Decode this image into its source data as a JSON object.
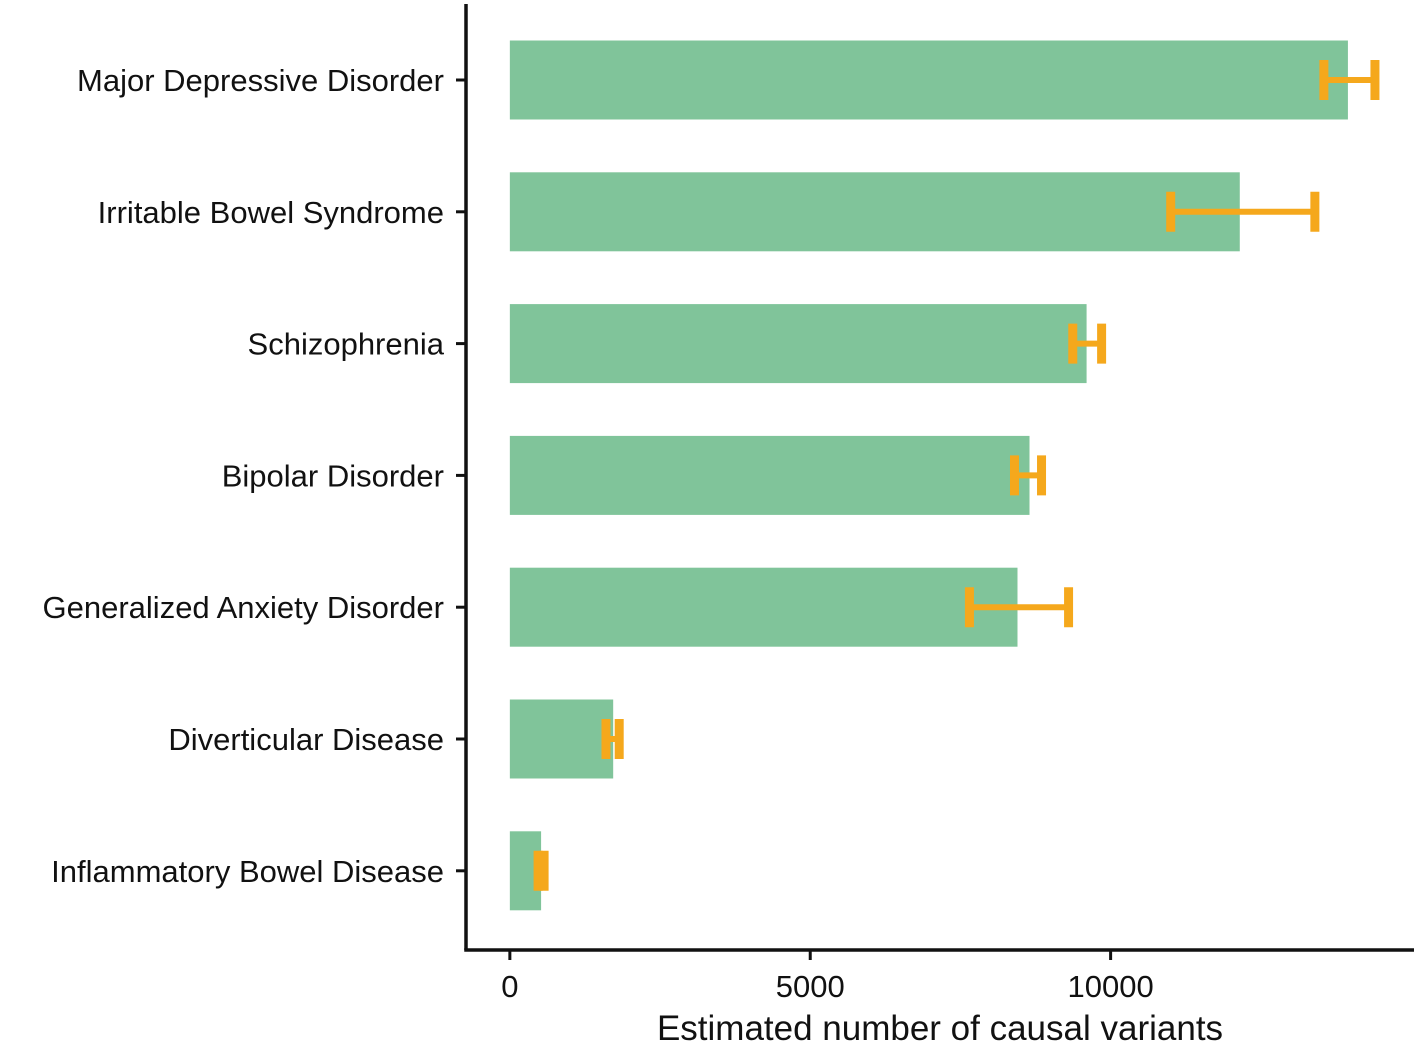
{
  "chart_data": {
    "type": "bar",
    "orientation": "horizontal",
    "title": "",
    "xlabel": "Estimated number of causal variants",
    "ylabel": "",
    "xlim": [
      -730,
      15050
    ],
    "xticks": [
      0,
      5000,
      10000
    ],
    "xtick_labels": [
      "0",
      "5000",
      "10000"
    ],
    "grid": false,
    "legend": "none",
    "categories": [
      "Major Depressive Disorder",
      "Irritable Bowel Syndrome",
      "Schizophrenia",
      "Bipolar Disorder",
      "Generalized Anxiety Disorder",
      "Diverticular Disease",
      "Inflammatory Bowel Disease"
    ],
    "values": [
      13950,
      12150,
      9600,
      8650,
      8450,
      1720,
      520
    ],
    "error_low": [
      13550,
      11000,
      9370,
      8400,
      7650,
      1600,
      470
    ],
    "error_high": [
      14400,
      13400,
      9850,
      8850,
      9300,
      1820,
      570
    ],
    "colors": {
      "bar": "#80c49a",
      "error": "#f5a81c",
      "axis": "#111111"
    }
  }
}
